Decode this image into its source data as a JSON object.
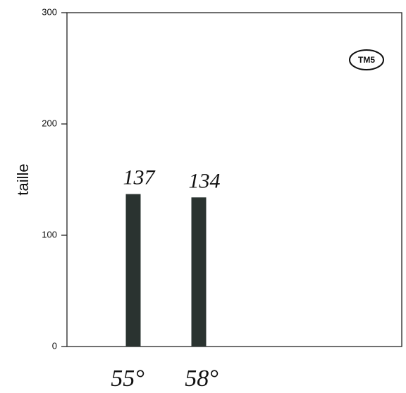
{
  "chart_data": {
    "type": "bar",
    "y_label": "taille",
    "annotation": "TM5",
    "categories": [
      "55°",
      "58°"
    ],
    "values": [
      137,
      134
    ],
    "color": "#2a3330",
    "ylim": [
      0,
      300
    ],
    "yticks": [
      0,
      100,
      200,
      300
    ]
  }
}
